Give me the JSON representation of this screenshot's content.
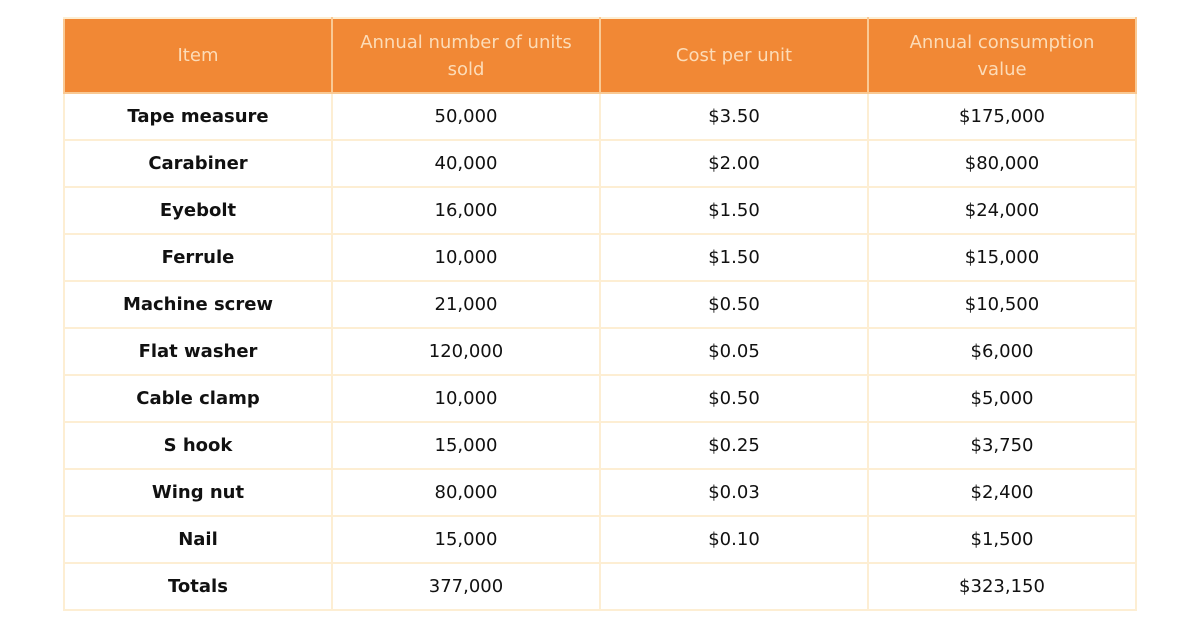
{
  "table": {
    "headers": [
      "Item",
      "Annual number of units sold",
      "Cost per unit",
      "Annual consumption value"
    ],
    "rows": [
      [
        "Tape measure",
        "50,000",
        "$3.50",
        "$175,000"
      ],
      [
        "Carabiner",
        "40,000",
        "$2.00",
        "$80,000"
      ],
      [
        "Eyebolt",
        "16,000",
        "$1.50",
        "$24,000"
      ],
      [
        "Ferrule",
        "10,000",
        "$1.50",
        "$15,000"
      ],
      [
        "Machine screw",
        "21,000",
        "$0.50",
        "$10,500"
      ],
      [
        "Flat washer",
        "120,000",
        "$0.05",
        "$6,000"
      ],
      [
        "Cable clamp",
        "10,000",
        "$0.50",
        "$5,000"
      ],
      [
        "S hook",
        "15,000",
        "$0.25",
        "$3,750"
      ],
      [
        "Wing nut",
        "80,000",
        "$0.03",
        "$2,400"
      ],
      [
        "Nail",
        "15,000",
        "$0.10",
        "$1,500"
      ],
      [
        "Totals",
        "377,000",
        "",
        "$323,150"
      ]
    ]
  },
  "colors": {
    "header_background": "#f18835",
    "header_text": "#fcdcb8",
    "grid_line": "#fdeed3",
    "body_text": "#111111"
  }
}
